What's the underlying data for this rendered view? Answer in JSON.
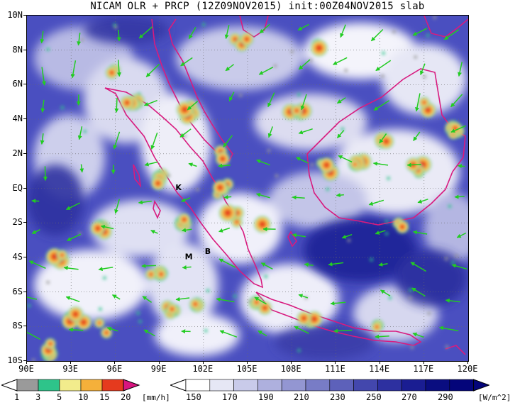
{
  "title": "NICAM OLR + PRCP (12Z09NOV2015) init:00Z04NOV2015 slab",
  "map": {
    "lat_labels": [
      "10N",
      "8N",
      "6N",
      "4N",
      "2N",
      "EQ",
      "2S",
      "4S",
      "6S",
      "8S",
      "10S"
    ],
    "lon_labels": [
      "90E",
      "93E",
      "96E",
      "99E",
      "102E",
      "105E",
      "108E",
      "111E",
      "114E",
      "117E",
      "120E"
    ],
    "lat_range": [
      -10,
      10
    ],
    "lon_range": [
      90,
      120
    ],
    "grid": "dotted",
    "station_markers": [
      {
        "label": "K",
        "lon": 100.3,
        "lat": -0.1
      },
      {
        "label": "M",
        "lon": 101.0,
        "lat": -4.1
      },
      {
        "label": "B",
        "lon": 102.3,
        "lat": -3.8
      }
    ],
    "wind_vector_color": "#22cc22",
    "coastline_color": "#d81b7f",
    "background_olr_color": "#4a4fc0"
  },
  "precip_colorbar": {
    "ticks": [
      "1",
      "3",
      "5",
      "10",
      "15",
      "20"
    ],
    "unit": "[mm/h]",
    "colors": [
      "#9a9a9a",
      "#2ec48a",
      "#f2ec8c",
      "#f5b03a",
      "#e53a1e",
      "#d8157f"
    ]
  },
  "olr_colorbar": {
    "ticks": [
      "150",
      "170",
      "190",
      "210",
      "230",
      "250",
      "270",
      "290"
    ],
    "unit": "[W/m^2]",
    "colors": [
      "#ffffff",
      "#e6e7f5",
      "#c9cbea",
      "#aeb0de",
      "#9396d2",
      "#787cc6",
      "#5d61ba",
      "#4347ad",
      "#2d30a0",
      "#1a1d92",
      "#0a0d80",
      "#04057a"
    ]
  }
}
